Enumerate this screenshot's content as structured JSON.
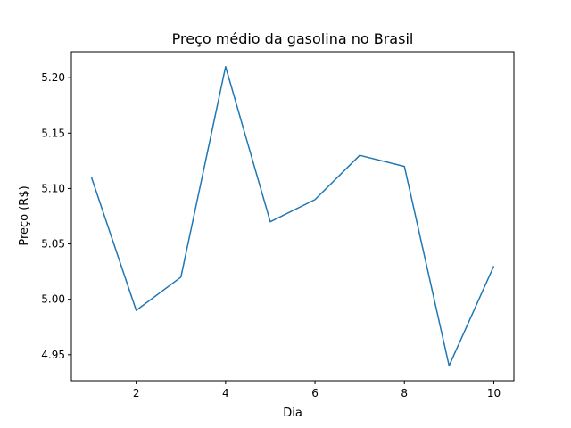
{
  "chart_data": {
    "type": "line",
    "title": "Preço médio da gasolina no Brasil",
    "xlabel": "Dia",
    "ylabel": "Preço (R$)",
    "x": [
      1,
      2,
      3,
      4,
      5,
      6,
      7,
      8,
      9,
      10
    ],
    "series": [
      {
        "values": [
          5.11,
          4.99,
          5.02,
          5.21,
          5.07,
          5.09,
          5.13,
          5.12,
          4.94,
          5.03
        ]
      }
    ],
    "xlim": [
      0.55,
      10.45
    ],
    "ylim": [
      4.9265,
      5.2235
    ],
    "xticks": [
      2,
      4,
      6,
      8,
      10
    ],
    "xtick_labels": [
      "2",
      "4",
      "6",
      "8",
      "10"
    ],
    "yticks": [
      4.95,
      5.0,
      5.05,
      5.1,
      5.15,
      5.2
    ],
    "ytick_labels": [
      "4.95",
      "5.00",
      "5.05",
      "5.10",
      "5.15",
      "5.20"
    ],
    "grid": false,
    "line_color": "#1f77b4"
  }
}
